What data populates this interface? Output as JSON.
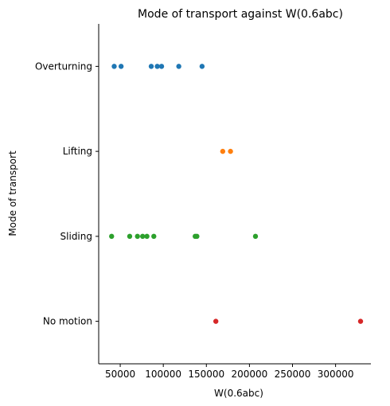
{
  "chart_data": {
    "type": "scatter",
    "title": "Mode of transport against W(0.6abc)",
    "xlabel": "W(0.6abc)",
    "ylabel": "Mode of transport",
    "xlim": [
      25000,
      341000
    ],
    "xticks": [
      50000,
      100000,
      150000,
      200000,
      250000,
      300000
    ],
    "xtick_labels": [
      "50000",
      "100000",
      "150000",
      "200000",
      "250000",
      "300000"
    ],
    "categories": [
      "Overturning",
      "Lifting",
      "Sliding",
      "No motion"
    ],
    "grid": false,
    "series": [
      {
        "category": "Overturning",
        "color": "#1f77b4",
        "x": [
          43000,
          51000,
          86000,
          93000,
          98000,
          118000,
          145000
        ]
      },
      {
        "category": "Lifting",
        "color": "#ff7f0e",
        "x": [
          169000,
          178000
        ]
      },
      {
        "category": "Sliding",
        "color": "#2ca02c",
        "x": [
          40000,
          61000,
          70000,
          76000,
          81000,
          89000,
          137000,
          139000,
          207000
        ]
      },
      {
        "category": "No motion",
        "color": "#d62728",
        "x": [
          161000,
          329000
        ]
      }
    ]
  }
}
